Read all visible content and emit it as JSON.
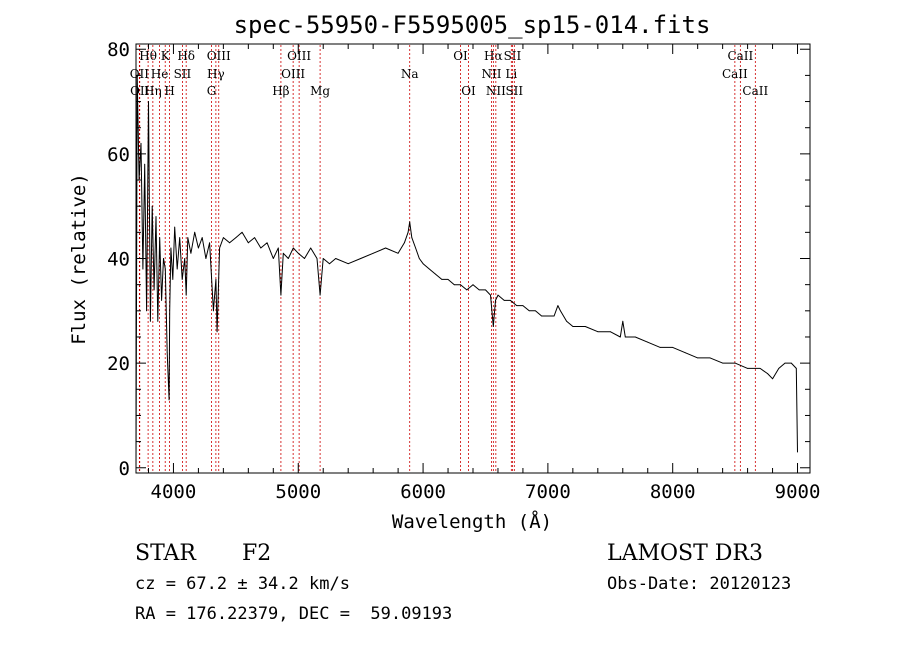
{
  "chart_data": {
    "type": "line",
    "title": "spec-55950-F5595005_sp15-014.fits",
    "xlabel": "Wavelength (Å)",
    "ylabel": "Flux (relative)",
    "xlim": [
      3700,
      9100
    ],
    "ylim": [
      -1,
      81
    ],
    "xticks": [
      4000,
      5000,
      6000,
      7000,
      8000,
      9000
    ],
    "yticks": [
      0,
      20,
      40,
      60,
      80
    ],
    "series": [
      {
        "name": "flux",
        "x": [
          3700,
          3710,
          3725,
          3740,
          3755,
          3770,
          3785,
          3800,
          3815,
          3830,
          3845,
          3860,
          3875,
          3890,
          3905,
          3920,
          3935,
          3950,
          3965,
          3970,
          3980,
          3995,
          4010,
          4030,
          4050,
          4070,
          4090,
          4102,
          4115,
          4140,
          4170,
          4200,
          4230,
          4260,
          4290,
          4320,
          4340,
          4350,
          4370,
          4400,
          4450,
          4500,
          4550,
          4600,
          4650,
          4700,
          4750,
          4800,
          4840,
          4861,
          4880,
          4920,
          4960,
          5000,
          5050,
          5100,
          5150,
          5175,
          5200,
          5250,
          5300,
          5400,
          5500,
          5600,
          5700,
          5800,
          5850,
          5880,
          5893,
          5910,
          5940,
          5970,
          6000,
          6050,
          6100,
          6150,
          6200,
          6250,
          6300,
          6350,
          6400,
          6450,
          6500,
          6540,
          6563,
          6580,
          6600,
          6650,
          6700,
          6750,
          6800,
          6850,
          6900,
          6950,
          7000,
          7050,
          7080,
          7100,
          7150,
          7200,
          7300,
          7400,
          7500,
          7580,
          7600,
          7620,
          7700,
          7800,
          7900,
          8000,
          8100,
          8200,
          8300,
          8400,
          8500,
          8600,
          8700,
          8760,
          8800,
          8850,
          8900,
          8950,
          8990,
          9000
        ],
        "values": [
          0,
          75,
          55,
          62,
          38,
          58,
          30,
          70,
          28,
          50,
          34,
          48,
          28,
          44,
          32,
          40,
          38,
          22,
          13,
          30,
          42,
          36,
          46,
          38,
          44,
          36,
          40,
          33,
          44,
          41,
          45,
          42,
          44,
          40,
          43,
          30,
          36,
          26,
          42,
          44,
          43,
          44,
          45,
          43,
          44,
          42,
          43,
          40,
          42,
          33,
          41,
          40,
          42,
          41,
          40,
          42,
          40,
          33,
          40,
          39,
          40,
          39,
          40,
          41,
          42,
          41,
          43,
          45,
          47,
          44,
          42,
          40,
          39,
          38,
          37,
          36,
          36,
          35,
          35,
          34,
          35,
          34,
          34,
          33,
          27,
          32,
          33,
          32,
          32,
          31,
          31,
          30,
          30,
          29,
          29,
          29,
          31,
          30,
          28,
          27,
          27,
          26,
          26,
          25,
          28,
          25,
          25,
          24,
          23,
          23,
          22,
          21,
          21,
          20,
          20,
          19,
          19,
          18,
          17,
          19,
          20,
          20,
          19,
          3
        ]
      }
    ],
    "lines": [
      {
        "name": "Hθ",
        "wave": 3797,
        "row": 0
      },
      {
        "name": "OII",
        "wave": 3727,
        "row": 1
      },
      {
        "name": "OII",
        "wave": 3730,
        "row": 2
      },
      {
        "name": "Hη",
        "wave": 3835,
        "row": 2
      },
      {
        "name": "K",
        "wave": 3934,
        "row": 0
      },
      {
        "name": "He",
        "wave": 3889,
        "row": 1
      },
      {
        "name": "SII",
        "wave": 4072,
        "row": 1
      },
      {
        "name": "H",
        "wave": 3969,
        "row": 2
      },
      {
        "name": "Hδ",
        "wave": 4102,
        "row": 0
      },
      {
        "name": "OIII",
        "wave": 4363,
        "row": 0
      },
      {
        "name": "Hγ",
        "wave": 4340,
        "row": 1
      },
      {
        "name": "G",
        "wave": 4305,
        "row": 2
      },
      {
        "name": "OIII",
        "wave": 5007,
        "row": 0
      },
      {
        "name": "OIII",
        "wave": 4959,
        "row": 1
      },
      {
        "name": "Hβ",
        "wave": 4861,
        "row": 2
      },
      {
        "name": "Mg",
        "wave": 5175,
        "row": 2
      },
      {
        "name": "Na",
        "wave": 5893,
        "row": 1
      },
      {
        "name": "OI",
        "wave": 6300,
        "row": 0
      },
      {
        "name": "OI",
        "wave": 6364,
        "row": 2
      },
      {
        "name": "Hα",
        "wave": 6563,
        "row": 0
      },
      {
        "name": "SII",
        "wave": 6716,
        "row": 0
      },
      {
        "name": "NII",
        "wave": 6548,
        "row": 1
      },
      {
        "name": "Li",
        "wave": 6707,
        "row": 1
      },
      {
        "name": "NII",
        "wave": 6583,
        "row": 2
      },
      {
        "name": "SII",
        "wave": 6731,
        "row": 2
      },
      {
        "name": "CaII",
        "wave": 8542,
        "row": 0
      },
      {
        "name": "CaII",
        "wave": 8498,
        "row": 1
      },
      {
        "name": "CaII",
        "wave": 8662,
        "row": 2
      }
    ]
  },
  "info": {
    "object_class": "STAR",
    "subclass": "F2",
    "survey": "LAMOST DR3",
    "redshift": "cz = 67.2 ± 34.2 km/s",
    "obs_date": "Obs-Date: 20120123",
    "coords": "RA = 176.22379, DEC =  59.09193"
  },
  "colors": {
    "axis": "#000000",
    "spectrum": "#000000",
    "line_markers": "#cc0000"
  }
}
